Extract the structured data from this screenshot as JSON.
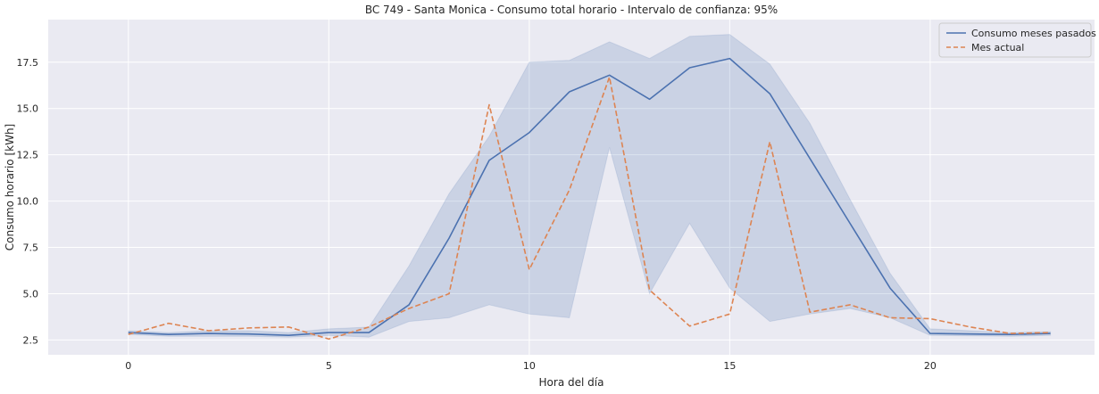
{
  "chart_data": {
    "type": "line",
    "title": "BC 749 - Santa Monica - Consumo total horario - Intervalo de confianza: 95%",
    "xlabel": "Hora del día",
    "ylabel": "Consumo horario [kWh]",
    "xlim": [
      -2,
      24.1
    ],
    "ylim": [
      1.7,
      19.8
    ],
    "x_ticks": [
      0,
      5,
      10,
      15,
      20
    ],
    "x_tick_labels": [
      "0",
      "5",
      "10",
      "15",
      "20"
    ],
    "y_ticks": [
      2.5,
      5.0,
      7.5,
      10.0,
      12.5,
      15.0,
      17.5
    ],
    "y_tick_labels": [
      "2.5",
      "5.0",
      "7.5",
      "10.0",
      "12.5",
      "15.0",
      "17.5"
    ],
    "grid": true,
    "legend_position": "top-right",
    "x": [
      0,
      1,
      2,
      3,
      4,
      5,
      6,
      7,
      8,
      9,
      10,
      11,
      12,
      13,
      14,
      15,
      16,
      17,
      18,
      19,
      20,
      21,
      22,
      23
    ],
    "series": [
      {
        "name": "Consumo meses pasados",
        "color": "#4c72b0",
        "style": "solid",
        "values": [
          2.9,
          2.8,
          2.85,
          2.82,
          2.75,
          2.9,
          2.9,
          4.4,
          8.0,
          12.2,
          13.7,
          15.9,
          16.8,
          15.5,
          17.2,
          17.7,
          15.8,
          12.3,
          8.8,
          5.3,
          2.85,
          2.82,
          2.8,
          2.85
        ],
        "ci_lower": [
          2.8,
          2.7,
          2.7,
          2.7,
          2.65,
          2.75,
          2.65,
          3.5,
          3.7,
          4.4,
          3.9,
          3.7,
          12.9,
          5.0,
          8.8,
          5.3,
          3.5,
          3.9,
          4.2,
          3.7,
          2.75,
          2.72,
          2.7,
          2.75
        ],
        "ci_upper": [
          3.0,
          2.9,
          3.0,
          3.0,
          2.9,
          3.1,
          3.2,
          6.5,
          10.4,
          13.5,
          17.5,
          17.6,
          18.6,
          17.7,
          18.9,
          19.0,
          17.4,
          14.2,
          10.1,
          6.1,
          3.1,
          3.0,
          2.9,
          2.95
        ],
        "ci_color": "#4c72b0"
      },
      {
        "name": "Mes actual",
        "color": "#dd8452",
        "style": "dashed",
        "values": [
          2.8,
          3.4,
          3.0,
          3.15,
          3.2,
          2.55,
          3.2,
          4.2,
          5.0,
          15.2,
          6.3,
          10.6,
          16.7,
          5.2,
          3.25,
          3.9,
          13.2,
          4.0,
          4.4,
          3.7,
          3.65,
          3.2,
          2.85,
          2.9
        ]
      }
    ]
  }
}
